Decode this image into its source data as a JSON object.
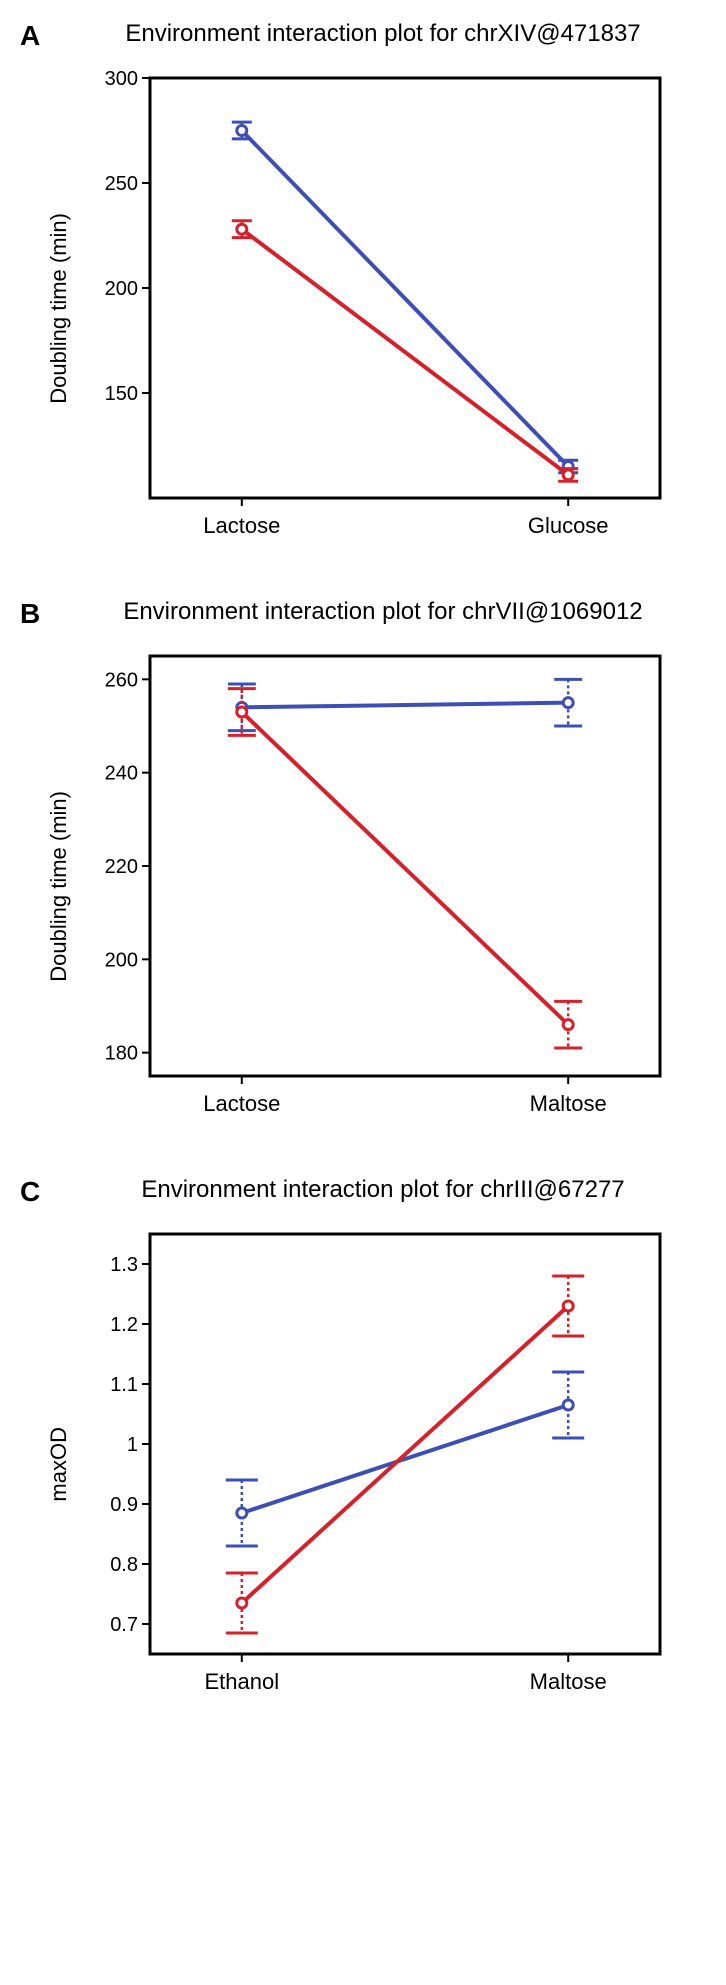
{
  "colors": {
    "blue": "#3d4fb5",
    "red": "#d6202a",
    "axis": "#000000",
    "bg": "#ffffff"
  },
  "font": {
    "title_size": 24,
    "label_size": 22,
    "tick_size": 20,
    "letter_size": 28
  },
  "panelA": {
    "letter": "A",
    "title": "Environment interaction plot for chrXIV@471837",
    "ylabel": "Doubling time (min)",
    "x_categories": [
      "Lactose",
      "Glucose"
    ],
    "ylim": [
      100,
      300
    ],
    "yticks": [
      150,
      200,
      250,
      300
    ],
    "series": [
      {
        "color": "#3d4fb5",
        "values": [
          275,
          115
        ],
        "err": [
          4,
          3
        ]
      },
      {
        "color": "#d6202a",
        "values": [
          228,
          111
        ],
        "err": [
          4,
          3
        ]
      }
    ],
    "line_width": 4,
    "marker_radius": 5,
    "cap_width": 10
  },
  "panelB": {
    "letter": "B",
    "title": "Environment interaction plot for chrVII@1069012",
    "ylabel": "Doubling time (min)",
    "x_categories": [
      "Lactose",
      "Maltose"
    ],
    "ylim": [
      175,
      265
    ],
    "yticks": [
      180,
      200,
      220,
      240,
      260
    ],
    "series": [
      {
        "color": "#3d4fb5",
        "values": [
          254,
          255
        ],
        "err": [
          5,
          5
        ]
      },
      {
        "color": "#d6202a",
        "values": [
          253,
          186
        ],
        "err": [
          5,
          5
        ]
      }
    ],
    "line_width": 4,
    "marker_radius": 5,
    "cap_width": 14,
    "dotted_err": true
  },
  "panelC": {
    "letter": "C",
    "title": "Environment interaction plot for chrIII@67277",
    "ylabel": "maxOD",
    "x_categories": [
      "Ethanol",
      "Maltose"
    ],
    "ylim": [
      0.65,
      1.35
    ],
    "yticks": [
      0.7,
      0.8,
      0.9,
      1.0,
      1.1,
      1.2,
      1.3
    ],
    "series": [
      {
        "color": "#3d4fb5",
        "values": [
          0.885,
          1.065
        ],
        "err": [
          0.055,
          0.055
        ]
      },
      {
        "color": "#d6202a",
        "values": [
          0.735,
          1.23
        ],
        "err": [
          0.05,
          0.05
        ]
      }
    ],
    "line_width": 4,
    "marker_radius": 5,
    "cap_width": 16,
    "dotted_err": true
  }
}
